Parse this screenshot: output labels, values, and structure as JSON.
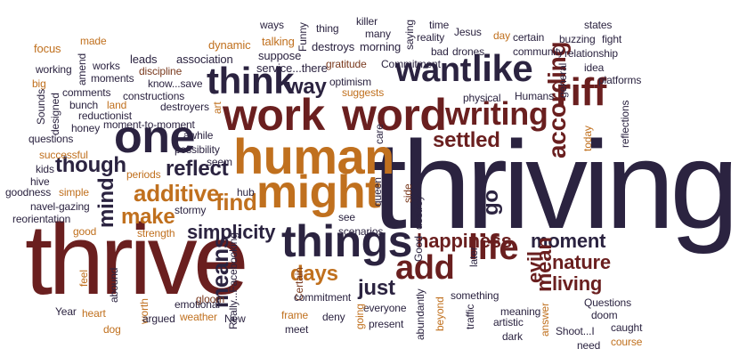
{
  "palette": {
    "dark_navy": "#2b2340",
    "brown": "#7a3a1e",
    "rust": "#9c4a1a",
    "orange": "#c0701e",
    "dark_red": "#6a1f1f",
    "olive": "#5a4a2a",
    "gray": "#3c3c3c"
  },
  "words": [
    {
      "id": "thriving",
      "text": "thriving"
    },
    {
      "id": "thrive",
      "text": "thrive"
    },
    {
      "id": "work",
      "text": "work"
    },
    {
      "id": "word",
      "text": "word"
    },
    {
      "id": "human",
      "text": "human"
    },
    {
      "id": "might",
      "text": "might"
    },
    {
      "id": "things",
      "text": "things"
    },
    {
      "id": "one",
      "text": "one"
    },
    {
      "id": "think",
      "text": "think"
    },
    {
      "id": "want",
      "text": "want"
    },
    {
      "id": "like",
      "text": "like"
    },
    {
      "id": "writing",
      "text": "writing"
    },
    {
      "id": "riff",
      "text": "riff"
    },
    {
      "id": "way",
      "text": "way"
    },
    {
      "id": "life",
      "text": "life"
    },
    {
      "id": "add",
      "text": "add"
    },
    {
      "id": "according",
      "text": "according"
    },
    {
      "id": "settled",
      "text": "settled"
    },
    {
      "id": "though",
      "text": "though"
    },
    {
      "id": "reflect",
      "text": "reflect"
    },
    {
      "id": "additive",
      "text": "additive"
    },
    {
      "id": "make",
      "text": "make"
    },
    {
      "id": "find",
      "text": "find"
    },
    {
      "id": "simplicity",
      "text": "simplicity"
    },
    {
      "id": "happiness",
      "text": "happiness"
    },
    {
      "id": "moment",
      "text": "moment"
    },
    {
      "id": "nature",
      "text": "nature"
    },
    {
      "id": "living",
      "text": "living"
    },
    {
      "id": "days",
      "text": "days"
    },
    {
      "id": "just",
      "text": "just"
    },
    {
      "id": "evil",
      "text": "evil"
    },
    {
      "id": "mean",
      "text": "mean"
    },
    {
      "id": "means",
      "text": "means"
    },
    {
      "id": "mind",
      "text": "mind"
    },
    {
      "id": "go",
      "text": "go"
    },
    {
      "id": "focus",
      "text": "focus"
    },
    {
      "id": "made",
      "text": "made"
    },
    {
      "id": "leads",
      "text": "leads"
    },
    {
      "id": "association",
      "text": "association"
    },
    {
      "id": "dynamic",
      "text": "dynamic"
    },
    {
      "id": "talking",
      "text": "talking"
    },
    {
      "id": "suppose",
      "text": "suppose"
    },
    {
      "id": "service",
      "text": "service...there"
    },
    {
      "id": "funny",
      "text": "Funny"
    },
    {
      "id": "ways",
      "text": "ways"
    },
    {
      "id": "thing",
      "text": "thing"
    },
    {
      "id": "destroys",
      "text": "destroys"
    },
    {
      "id": "morning",
      "text": "morning"
    },
    {
      "id": "killer",
      "text": "killer"
    },
    {
      "id": "many",
      "text": "many"
    },
    {
      "id": "saying",
      "text": "saying"
    },
    {
      "id": "reality",
      "text": "reality"
    },
    {
      "id": "time",
      "text": "time"
    },
    {
      "id": "bad",
      "text": "bad"
    },
    {
      "id": "drones",
      "text": "drones"
    },
    {
      "id": "jesus",
      "text": "Jesus"
    },
    {
      "id": "day",
      "text": "day"
    },
    {
      "id": "certain",
      "text": "certain"
    },
    {
      "id": "states",
      "text": "states"
    },
    {
      "id": "buzzing",
      "text": "buzzing"
    },
    {
      "id": "fight",
      "text": "fight"
    },
    {
      "id": "community",
      "text": "community"
    },
    {
      "id": "relationship",
      "text": "relationship"
    },
    {
      "id": "gratitude",
      "text": "gratitude"
    },
    {
      "id": "commitment_cap",
      "text": "Commitment"
    },
    {
      "id": "working",
      "text": "working"
    },
    {
      "id": "works",
      "text": "works"
    },
    {
      "id": "amend",
      "text": "amend"
    },
    {
      "id": "discipline",
      "text": "discipline"
    },
    {
      "id": "big",
      "text": "big"
    },
    {
      "id": "moments",
      "text": "moments"
    },
    {
      "id": "know",
      "text": "know...save"
    },
    {
      "id": "comments",
      "text": "comments"
    },
    {
      "id": "bunch",
      "text": "bunch"
    },
    {
      "id": "land",
      "text": "land"
    },
    {
      "id": "constructions",
      "text": "constructions"
    },
    {
      "id": "destroyers",
      "text": "destroyers"
    },
    {
      "id": "optimism",
      "text": "optimism"
    },
    {
      "id": "suggests",
      "text": "suggests"
    },
    {
      "id": "idea",
      "text": "idea"
    },
    {
      "id": "platforms",
      "text": "platforms"
    },
    {
      "id": "general",
      "text": "general"
    },
    {
      "id": "humans",
      "text": "Humans"
    },
    {
      "id": "physical",
      "text": "physical"
    },
    {
      "id": "reductionist",
      "text": "reductionist"
    },
    {
      "id": "art",
      "text": "art"
    },
    {
      "id": "questions",
      "text": "questions"
    },
    {
      "id": "honey",
      "text": "honey"
    },
    {
      "id": "moment_to_moment",
      "text": "moment-to-moment"
    },
    {
      "id": "sounds",
      "text": "Sounds"
    },
    {
      "id": "designed",
      "text": "designed"
    },
    {
      "id": "awhile",
      "text": "awhile"
    },
    {
      "id": "possibility",
      "text": "possibility"
    },
    {
      "id": "seem",
      "text": "seem"
    },
    {
      "id": "care",
      "text": "care"
    },
    {
      "id": "today",
      "text": "today"
    },
    {
      "id": "reflections",
      "text": "reflections"
    },
    {
      "id": "successful",
      "text": "successful"
    },
    {
      "id": "kids",
      "text": "kids"
    },
    {
      "id": "hive",
      "text": "hive"
    },
    {
      "id": "periods",
      "text": "periods"
    },
    {
      "id": "goodness",
      "text": "goodness"
    },
    {
      "id": "simple",
      "text": "simple"
    },
    {
      "id": "hub",
      "text": "hub"
    },
    {
      "id": "queen",
      "text": "queen"
    },
    {
      "id": "side",
      "text": "side"
    },
    {
      "id": "destroy",
      "text": "destroy"
    },
    {
      "id": "navel",
      "text": "navel-gazing"
    },
    {
      "id": "stormy",
      "text": "stormy"
    },
    {
      "id": "reorientation",
      "text": "reorientation"
    },
    {
      "id": "good",
      "text": "good"
    },
    {
      "id": "strength",
      "text": "strength"
    },
    {
      "id": "see",
      "text": "see"
    },
    {
      "id": "scenarios",
      "text": "scenarios"
    },
    {
      "id": "good_cap",
      "text": "Good"
    },
    {
      "id": "later",
      "text": "later"
    },
    {
      "id": "feel",
      "text": "feel"
    },
    {
      "id": "abound",
      "text": "abound"
    },
    {
      "id": "really",
      "text": "Really...Facebooking"
    },
    {
      "id": "gloom",
      "text": "gloom"
    },
    {
      "id": "certain_cap",
      "text": "Certain"
    },
    {
      "id": "commitment",
      "text": "commitment"
    },
    {
      "id": "something",
      "text": "something"
    },
    {
      "id": "questions_cap",
      "text": "Questions"
    },
    {
      "id": "year",
      "text": "Year"
    },
    {
      "id": "heart",
      "text": "heart"
    },
    {
      "id": "worth",
      "text": "worth"
    },
    {
      "id": "emotional",
      "text": "emotional"
    },
    {
      "id": "argued",
      "text": "argued"
    },
    {
      "id": "weather",
      "text": "weather"
    },
    {
      "id": "frame",
      "text": "frame"
    },
    {
      "id": "deny",
      "text": "deny"
    },
    {
      "id": "everyone",
      "text": "everyone"
    },
    {
      "id": "beyond",
      "text": "beyond"
    },
    {
      "id": "traffic",
      "text": "traffic"
    },
    {
      "id": "meaning",
      "text": "meaning"
    },
    {
      "id": "doom",
      "text": "doom"
    },
    {
      "id": "dog",
      "text": "dog"
    },
    {
      "id": "new",
      "text": "New"
    },
    {
      "id": "meet",
      "text": "meet"
    },
    {
      "id": "going",
      "text": "going"
    },
    {
      "id": "present",
      "text": "present"
    },
    {
      "id": "abundantly",
      "text": "abundantly"
    },
    {
      "id": "artistic",
      "text": "artistic"
    },
    {
      "id": "answer",
      "text": "answer"
    },
    {
      "id": "shoot",
      "text": "Shoot...I"
    },
    {
      "id": "caught",
      "text": "caught"
    },
    {
      "id": "dark",
      "text": "dark"
    },
    {
      "id": "need",
      "text": "need"
    },
    {
      "id": "course",
      "text": "course"
    }
  ]
}
